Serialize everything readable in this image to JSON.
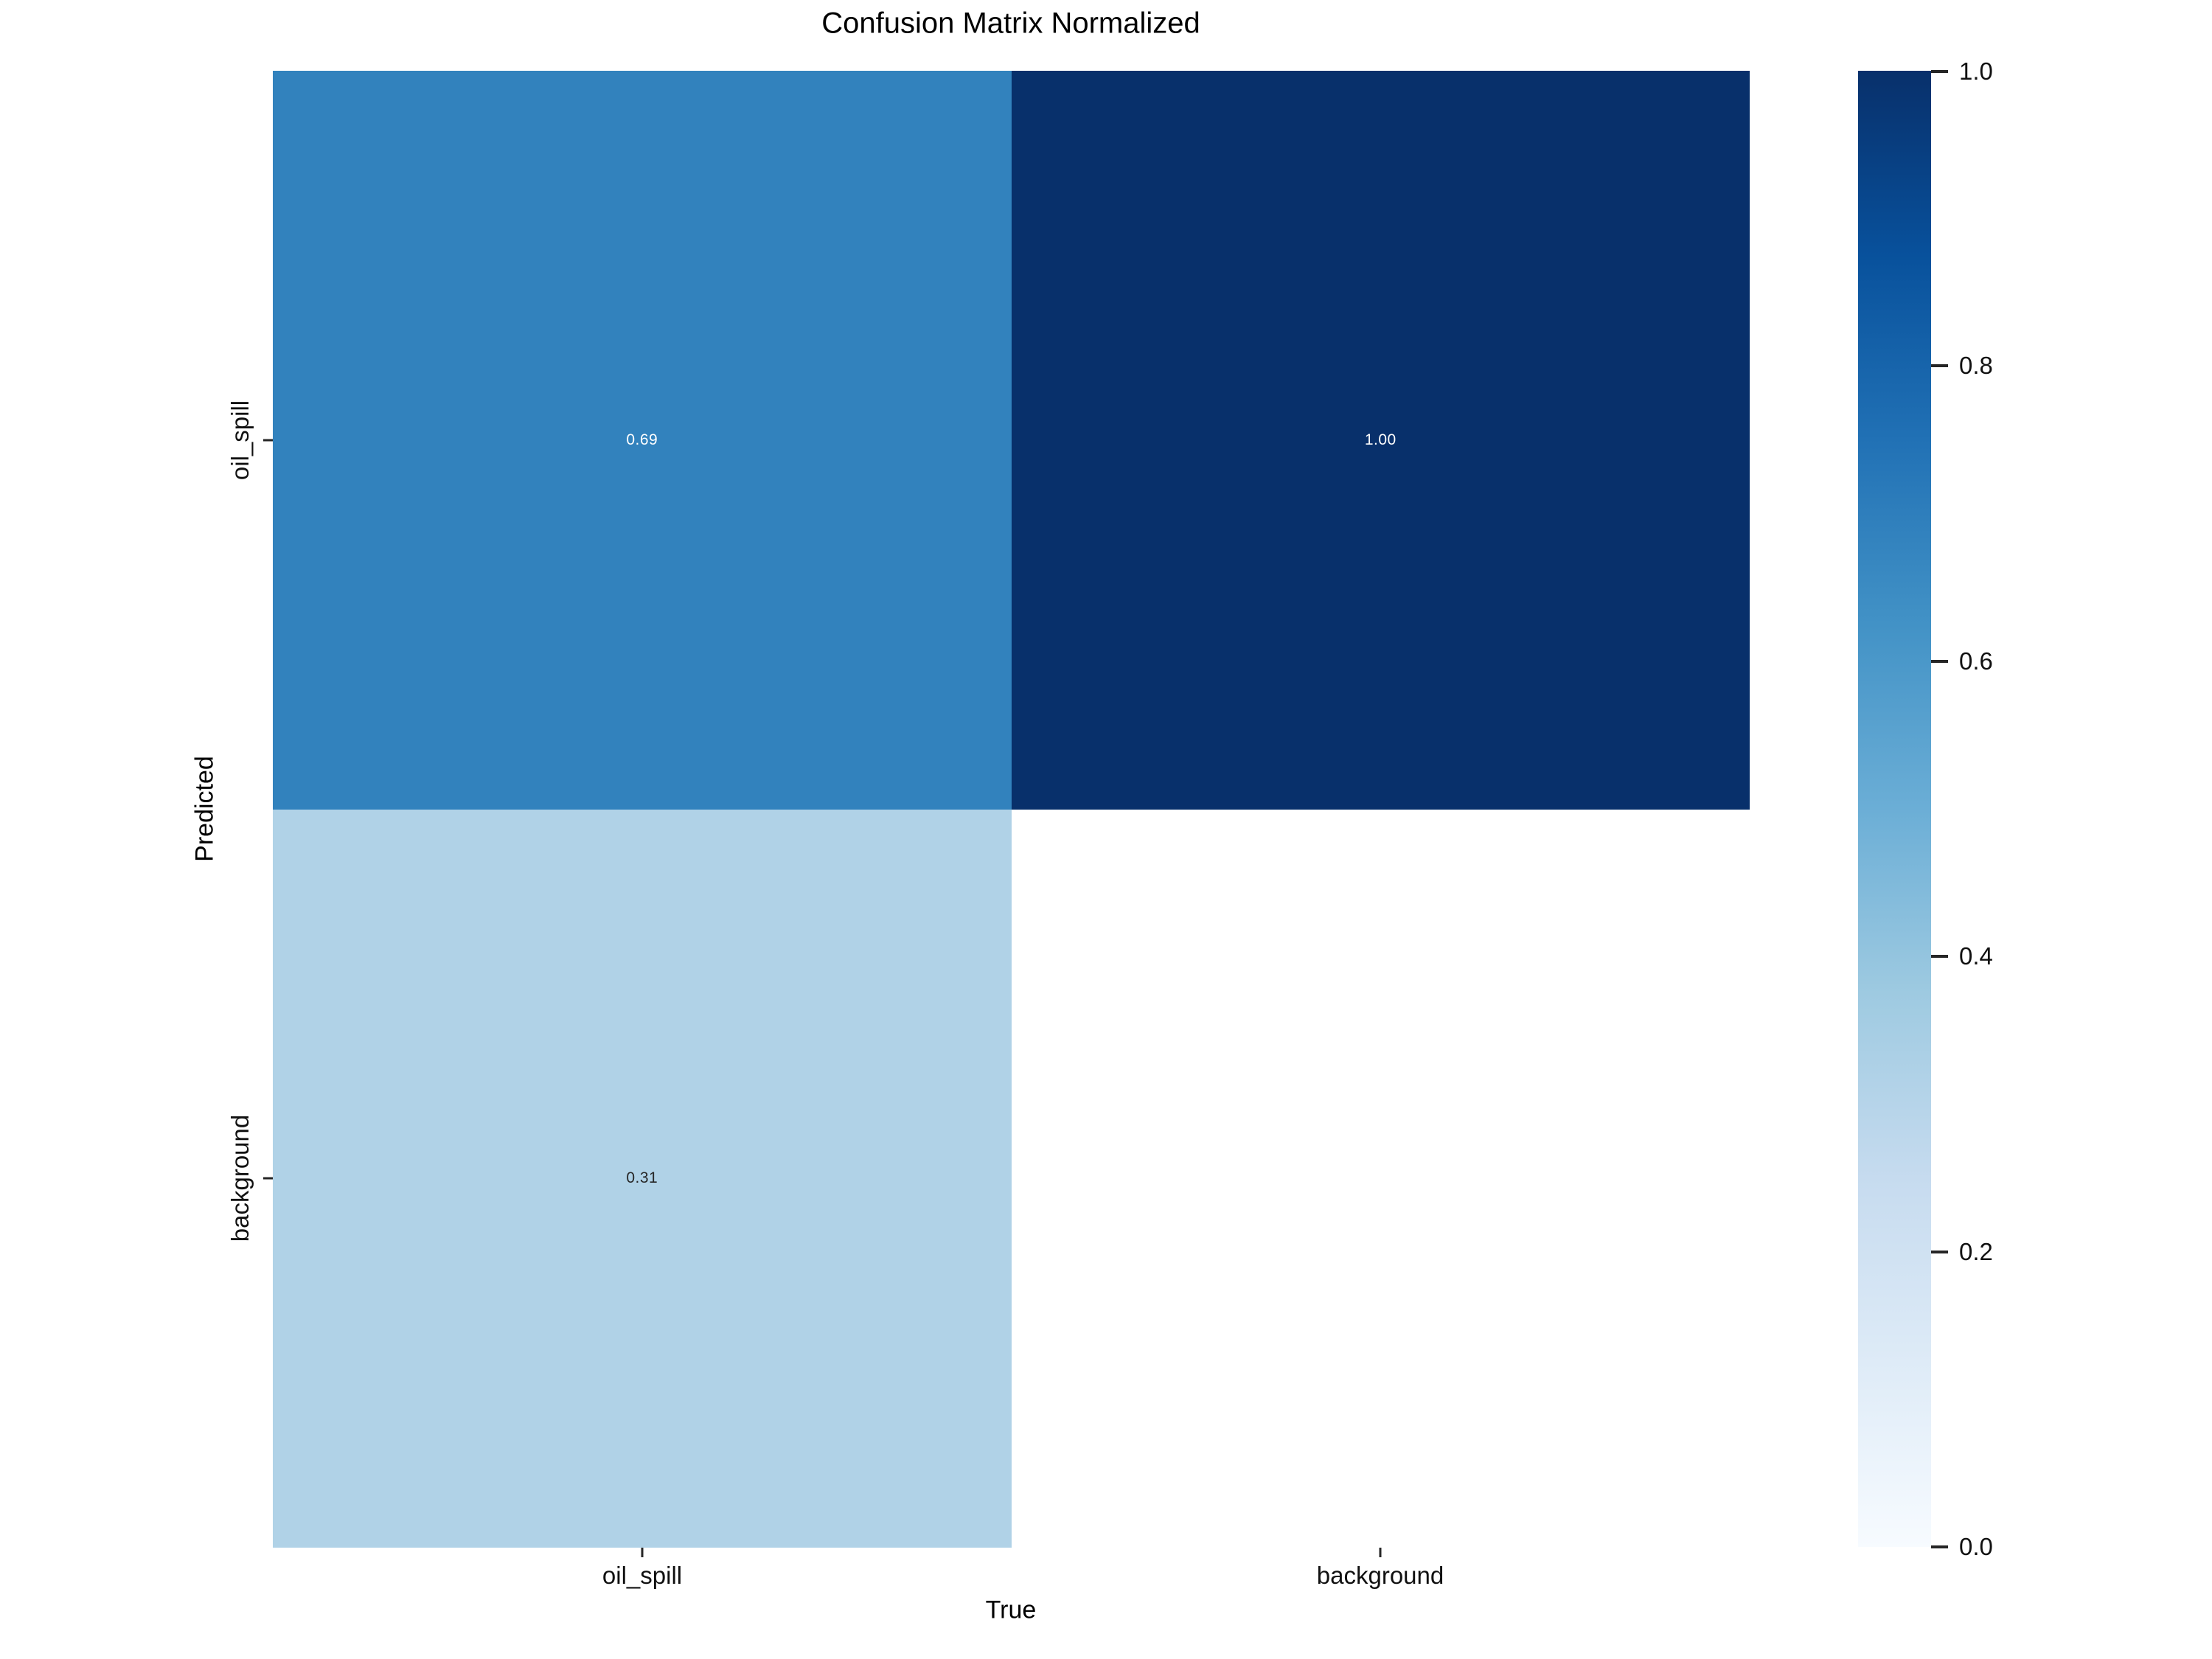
{
  "chart_data": {
    "type": "heatmap",
    "title": "Confusion Matrix Normalized",
    "xlabel": "True",
    "ylabel": "Predicted",
    "x_ticklabels": [
      "oil_spill",
      "background"
    ],
    "y_ticklabels": [
      "oil_spill",
      "background"
    ],
    "matrix_rows_are": "Predicted",
    "matrix_cols_are": "True",
    "matrix": [
      [
        0.69,
        1.0
      ],
      [
        0.31,
        null
      ]
    ],
    "vmin": 0.0,
    "vmax": 1.0,
    "colormap": "Blues",
    "grid": false,
    "legend_position": "colorbar-right",
    "colorbar_ticks": [
      "1.0",
      "0.8",
      "0.6",
      "0.4",
      "0.2",
      "0.0"
    ],
    "cells": [
      {
        "row": 0,
        "col": 0,
        "label": "0.69",
        "bg": "#3282bd",
        "fg": "#ffffff"
      },
      {
        "row": 0,
        "col": 1,
        "label": "1.00",
        "bg": "#08306b",
        "fg": "#ffffff"
      },
      {
        "row": 1,
        "col": 0,
        "label": "0.31",
        "bg": "#b0d2e7",
        "fg": "#262626"
      },
      {
        "row": 1,
        "col": 1,
        "label": "",
        "bg": "#ffffff",
        "fg": "#262626"
      }
    ],
    "colormap_stops_top_to_bottom": [
      "#08306b",
      "#08519c",
      "#2171b5",
      "#4292c6",
      "#6baed6",
      "#9ecae1",
      "#c6dbef",
      "#deebf7",
      "#f7fbff"
    ]
  }
}
